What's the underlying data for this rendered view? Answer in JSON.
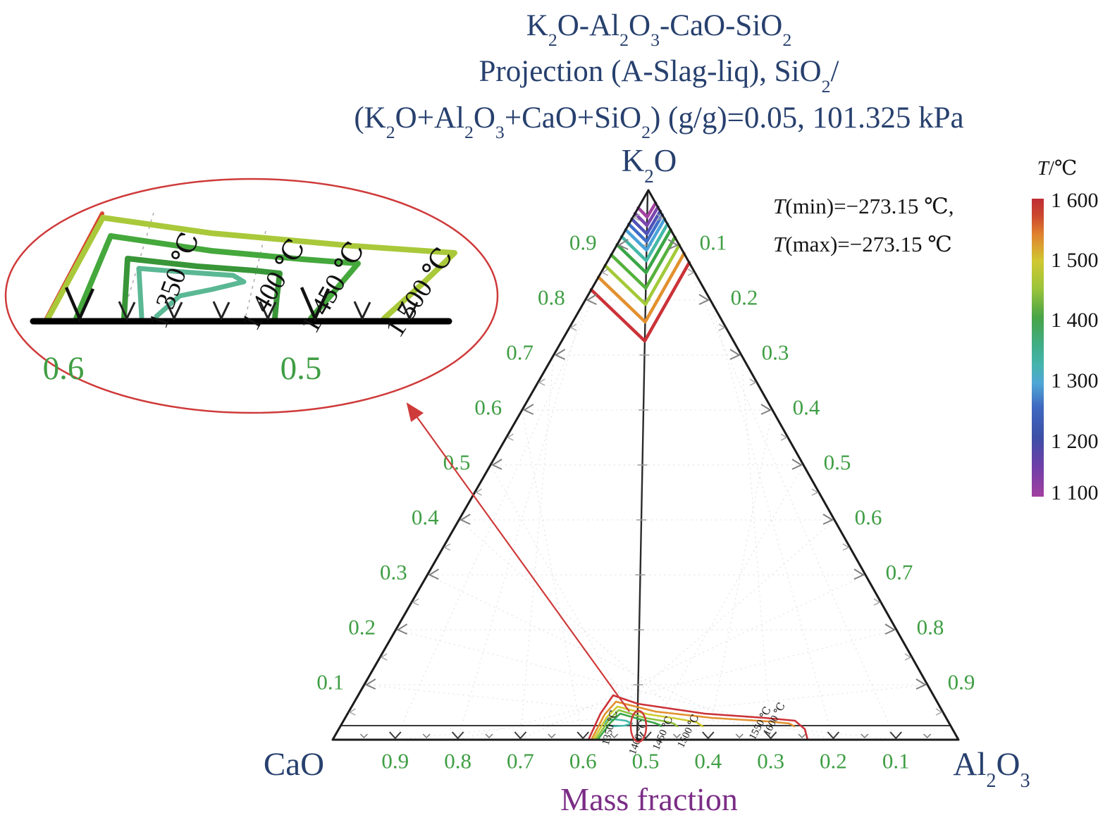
{
  "colors": {
    "navy": "#27406e",
    "green": "#3f9e44",
    "purple": "#7b2d86",
    "red": "#cf3a3a",
    "grid": "#c7cdd4",
    "edge": "#1c1c1c"
  },
  "title": {
    "lines": [
      "K_2O-Al_2O_3-CaO-SiO_2",
      "Projection (A-Slag-liq), SiO_2/",
      "(K_2O+Al_2O_3+CaO+SiO_2) (g/g)=0.05, 101.325 kPa"
    ]
  },
  "corners": {
    "top": "K_2O",
    "bottom_left": "CaO",
    "bottom_right": "Al_2O_3"
  },
  "axis_caption": "Mass fraction",
  "ticks": {
    "left": [
      "0.9",
      "0.8",
      "0.7",
      "0.6",
      "0.5",
      "0.4",
      "0.3",
      "0.2",
      "0.1"
    ],
    "right": [
      "0.1",
      "0.2",
      "0.3",
      "0.4",
      "0.5",
      "0.6",
      "0.7",
      "0.8",
      "0.9"
    ],
    "bottom": [
      "0.9",
      "0.8",
      "0.7",
      "0.6",
      "0.5",
      "0.4",
      "0.3",
      "0.2",
      "0.1"
    ]
  },
  "temp_note": {
    "t": "T",
    "min_rest": "(min)=−273.15 ℃,",
    "max_rest": "(max)=−273.15 ℃"
  },
  "colorbar": {
    "title_t": "T",
    "title_rest": "/℃",
    "ticks": [
      "1 600",
      "1 500",
      "1 400",
      "1 300",
      "1 200",
      "1 100"
    ],
    "gradient": [
      {
        "p": 0.0,
        "c": "#bf2c34"
      },
      {
        "p": 0.06,
        "c": "#cc4a2e"
      },
      {
        "p": 0.12,
        "c": "#e0822e"
      },
      {
        "p": 0.17,
        "c": "#d8a930"
      },
      {
        "p": 0.21,
        "c": "#cfc832"
      },
      {
        "p": 0.3,
        "c": "#9cc43a"
      },
      {
        "p": 0.4,
        "c": "#47a447"
      },
      {
        "p": 0.5,
        "c": "#3fae8c"
      },
      {
        "p": 0.56,
        "c": "#45b4ae"
      },
      {
        "p": 0.62,
        "c": "#4fa6d6"
      },
      {
        "p": 0.7,
        "c": "#3f68c0"
      },
      {
        "p": 0.8,
        "c": "#3c4fa6"
      },
      {
        "p": 0.9,
        "c": "#6f3fa8"
      },
      {
        "p": 1.0,
        "c": "#a23fa0"
      }
    ]
  },
  "inset": {
    "axis_labels": [
      "0.6",
      "0.5"
    ],
    "isotherm_labels": [
      "1 350 ℃",
      "1 400 ℃",
      "1 450 ℃",
      "1 500 ℃"
    ],
    "palette": {
      "1350": "#5bb894",
      "1400": "#389638",
      "1450": "#45a83c",
      "1500": "#a9c93a"
    },
    "extra_color": "#d8452e"
  },
  "main_isotherm_labels": [
    "1350 ℃",
    "1400 ℃",
    "1450 ℃",
    "1500 ℃",
    "1550 ℃",
    "1600 ℃"
  ],
  "chart_data": {
    "type": "ternary-contour",
    "title": "K2O-Al2O3-CaO-SiO2 Projection (A-Slag-liq), SiO2/(K2O+Al2O3+CaO+SiO2) (g/g)=0.05, 101.325 kPa",
    "components": {
      "top": "K2O",
      "bottom_left": "CaO",
      "bottom_right": "Al2O3"
    },
    "axis_units": "mass fraction",
    "axis_range": [
      0,
      1
    ],
    "axis_tick_step": 0.1,
    "pressure_kpa": 101.325,
    "sio2_ratio_g_per_g": 0.05,
    "t_min_c": -273.15,
    "t_max_c": -273.15,
    "colorbar": {
      "label": "T/℃",
      "min_c": 1100,
      "max_c": 1600,
      "tick_step_c": 100
    },
    "labeled_isotherms_c": [
      1350,
      1400,
      1450,
      1500,
      1550,
      1600
    ],
    "apex_isotherms": [
      {
        "t": 1100,
        "color": "#a343a0"
      },
      {
        "t": 1150,
        "color": "#7b44ad"
      },
      {
        "t": 1200,
        "color": "#4f52b8"
      },
      {
        "t": 1250,
        "color": "#3f6ec9"
      },
      {
        "t": 1300,
        "color": "#4aa2d9"
      },
      {
        "t": 1350,
        "color": "#44b8a8"
      },
      {
        "t": 1400,
        "color": "#3aa647"
      },
      {
        "t": 1450,
        "color": "#55b13c"
      },
      {
        "t": 1500,
        "color": "#a2ca38"
      },
      {
        "t": 1550,
        "color": "#e2902e"
      },
      {
        "t": 1600,
        "color": "#cb3238"
      }
    ],
    "bottom_isotherms": [
      {
        "t": 1350,
        "color": "#44b8a8"
      },
      {
        "t": 1400,
        "color": "#3aa647"
      },
      {
        "t": 1450,
        "color": "#8cc23c"
      },
      {
        "t": 1500,
        "color": "#cfcb31"
      },
      {
        "t": 1550,
        "color": "#e2902e"
      },
      {
        "t": 1600,
        "color": "#cb3238"
      }
    ]
  }
}
